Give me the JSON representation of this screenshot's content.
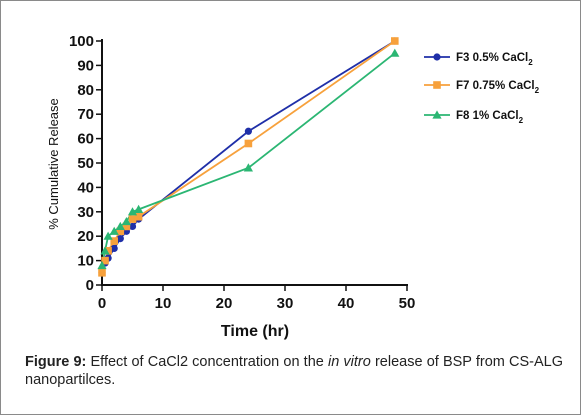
{
  "chart_data": {
    "type": "line",
    "xlabel": "Time (hr)",
    "ylabel": "% Cumulative Release",
    "xlim": [
      0,
      50
    ],
    "ylim": [
      0,
      100
    ],
    "xticks": [
      0,
      10,
      20,
      30,
      40,
      50
    ],
    "yticks": [
      0,
      10,
      20,
      30,
      40,
      50,
      60,
      70,
      80,
      90,
      100
    ],
    "grid": false,
    "legend_position": "top-right",
    "series": [
      {
        "name": "F3 0.5% CaCl2",
        "label_main": "F3 0.5% CaCl",
        "label_sub": "2",
        "color": "#1f2fa8",
        "marker": "circle",
        "x": [
          0,
          0.5,
          1,
          2,
          3,
          4,
          5,
          6,
          24,
          48
        ],
        "y": [
          5,
          9,
          11,
          15,
          19,
          22,
          24,
          27,
          63,
          100
        ]
      },
      {
        "name": "F7 0.75% CaCl2",
        "label_main": "F7 0.75% CaCl",
        "label_sub": "2",
        "color": "#f7a13c",
        "marker": "square",
        "x": [
          0,
          0.5,
          1,
          2,
          3,
          4,
          5,
          6,
          24,
          48
        ],
        "y": [
          5,
          10,
          14,
          18,
          22,
          24,
          27,
          28,
          58,
          100
        ]
      },
      {
        "name": "F8 1% CaCl2",
        "label_main": "F8 1% CaCl",
        "label_sub": "2",
        "color": "#2bb673",
        "marker": "triangle",
        "x": [
          0,
          0.5,
          1,
          2,
          3,
          4,
          5,
          6,
          24,
          48
        ],
        "y": [
          8,
          14,
          20,
          22,
          24,
          26,
          30,
          31,
          48,
          95
        ]
      }
    ]
  },
  "caption": {
    "label": "Figure 9:",
    "text_a": " Effect of CaCl2 concentration on the ",
    "text_italic": "in vitro",
    "text_b": " release of BSP from CS-ALG nanopartilces."
  }
}
